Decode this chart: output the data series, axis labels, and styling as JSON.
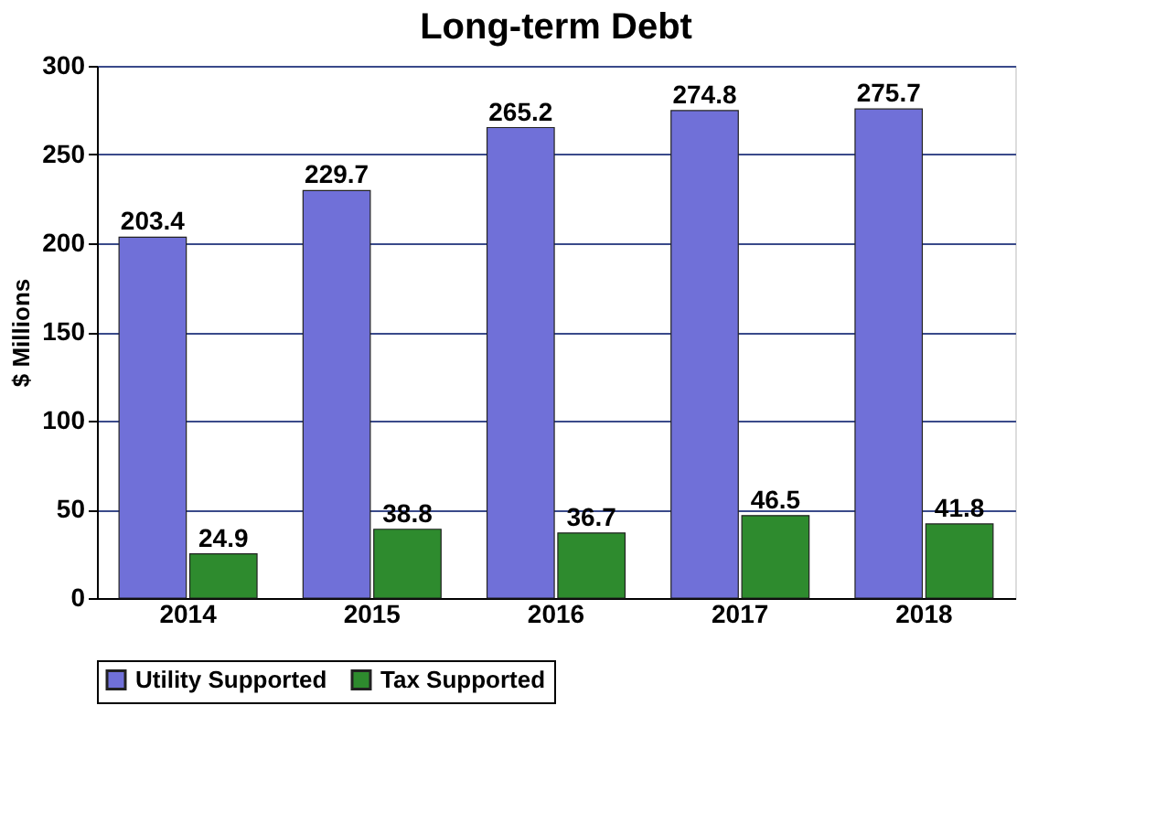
{
  "chart_data": {
    "type": "bar",
    "title": "Long-term Debt",
    "ylabel": "$ Millions",
    "categories": [
      "2014",
      "2015",
      "2016",
      "2017",
      "2018"
    ],
    "series": [
      {
        "name": "Utility Supported",
        "color": "#7070d8",
        "values": [
          203.4,
          229.7,
          265.2,
          274.8,
          275.7
        ]
      },
      {
        "name": "Tax Supported",
        "color": "#2e8b2e",
        "values": [
          24.9,
          38.8,
          36.7,
          46.5,
          41.8
        ]
      }
    ],
    "ylim": [
      0,
      300
    ],
    "yticks": [
      0,
      50,
      100,
      150,
      200,
      250,
      300
    ],
    "grid": "y",
    "legend": "bottom",
    "data_labels": true
  }
}
